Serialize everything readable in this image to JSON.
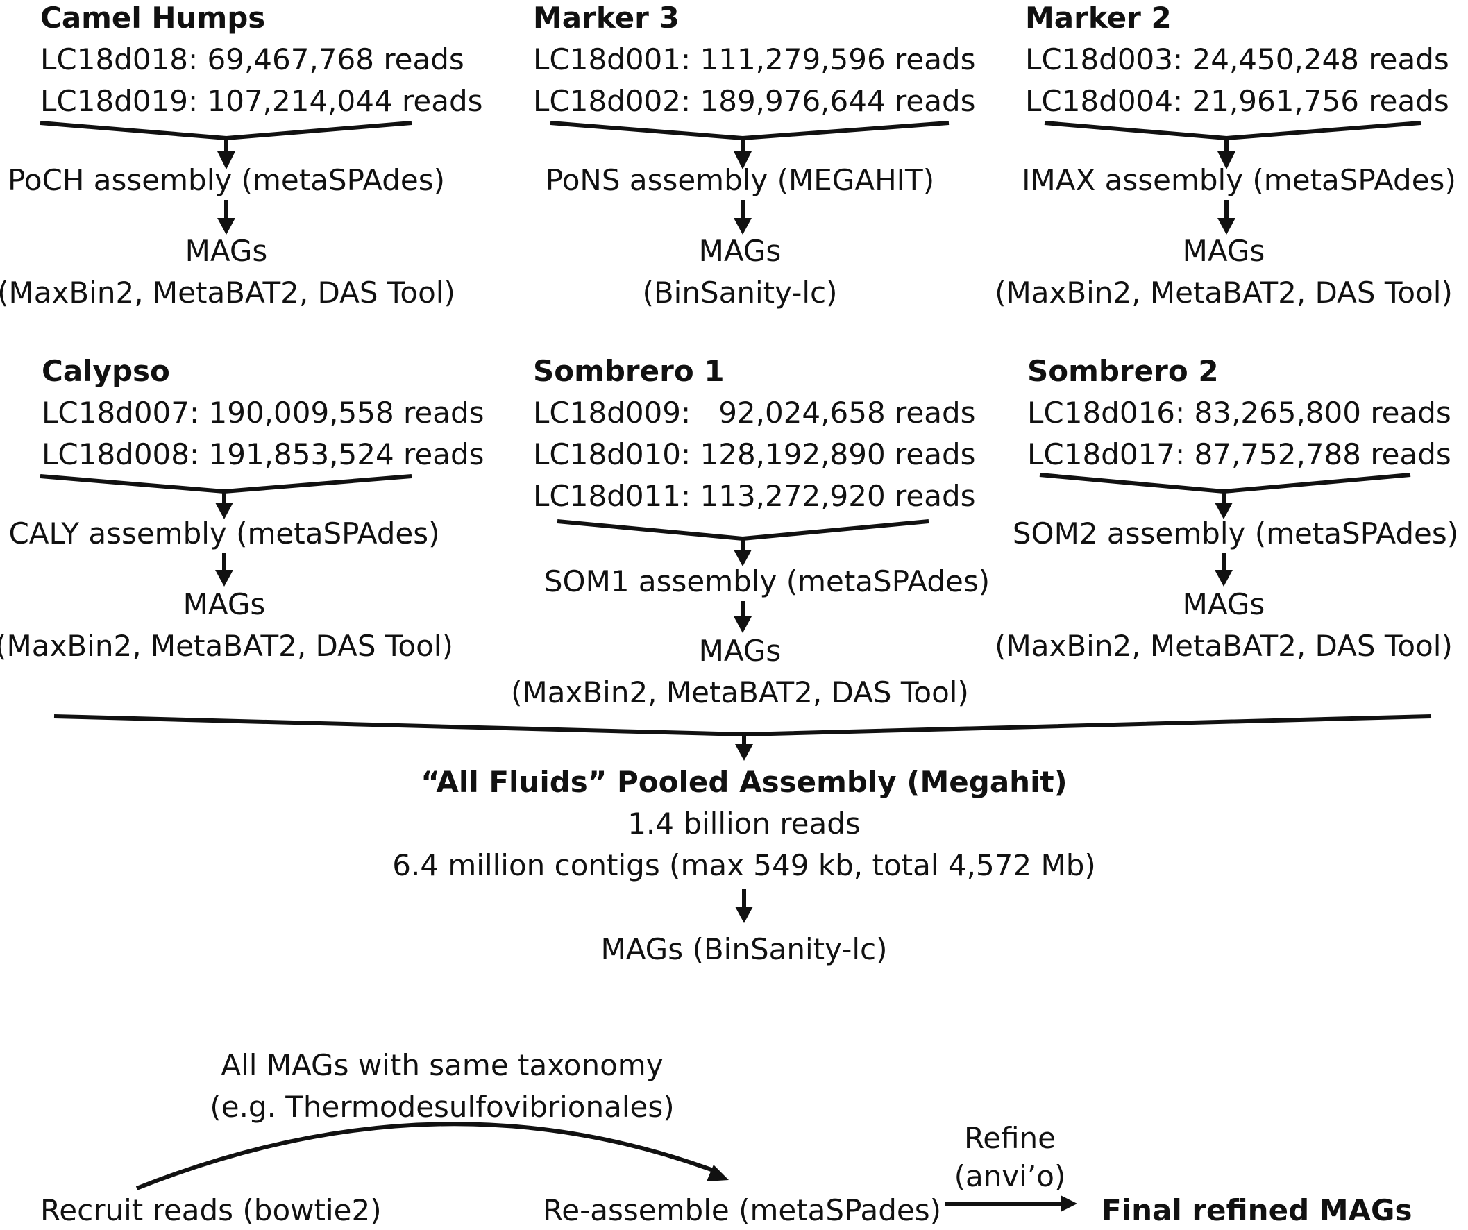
{
  "sites": [
    {
      "name": "Camel Humps",
      "reads": [
        "LC18d018: 69,467,768 reads",
        "LC18d019: 107,214,044 reads"
      ],
      "assembly": "PoCH assembly (metaSPAdes)",
      "mags": "MAGs",
      "binning": "(MaxBin2, MetaBAT2, DAS Tool)"
    },
    {
      "name": "Marker 3",
      "reads": [
        "LC18d001: 111,279,596 reads",
        "LC18d002: 189,976,644 reads"
      ],
      "assembly": "PoNS assembly (MEGAHIT)",
      "mags": "MAGs",
      "binning": "(BinSanity-lc)"
    },
    {
      "name": "Marker 2",
      "reads": [
        "LC18d003: 24,450,248 reads",
        "LC18d004: 21,961,756 reads"
      ],
      "assembly": "IMAX assembly (metaSPAdes)",
      "mags": "MAGs",
      "binning": "(MaxBin2, MetaBAT2, DAS Tool)"
    },
    {
      "name": "Calypso",
      "reads": [
        "LC18d007: 190,009,558 reads",
        "LC18d008: 191,853,524 reads"
      ],
      "assembly": "CALY assembly (metaSPAdes)",
      "mags": "MAGs",
      "binning": "(MaxBin2, MetaBAT2, DAS Tool)"
    },
    {
      "name": "Sombrero 1",
      "reads": [
        "LC18d009:   92,024,658 reads",
        "LC18d010: 128,192,890 reads",
        "LC18d011: 113,272,920 reads"
      ],
      "assembly": "SOM1 assembly (metaSPAdes)",
      "mags": "MAGs",
      "binning": "(MaxBin2, MetaBAT2, DAS Tool)"
    },
    {
      "name": "Sombrero 2",
      "reads": [
        "LC18d016: 83,265,800 reads",
        "LC18d017: 87,752,788 reads"
      ],
      "assembly": "SOM2 assembly (metaSPAdes)",
      "mags": "MAGs",
      "binning": "(MaxBin2, MetaBAT2, DAS Tool)"
    }
  ],
  "pooled": {
    "title": "“All Fluids” Pooled Assembly (Megahit)",
    "reads": "1.4 billion reads",
    "contigs": "6.4 million contigs (max 549 kb, total 4,572 Mb)",
    "mags": "MAGs (BinSanity-lc)"
  },
  "refinement": {
    "taxonomy_line1": "All MAGs with same taxonomy",
    "taxonomy_line2": "(e.g. Thermodesulfovibrionales)",
    "recruit": "Recruit reads (bowtie2)",
    "reassemble": "Re-assemble (metaSPades)",
    "refine_line1": "Refine",
    "refine_line2": "(anvi’o)",
    "final": "Final refined MAGs"
  }
}
